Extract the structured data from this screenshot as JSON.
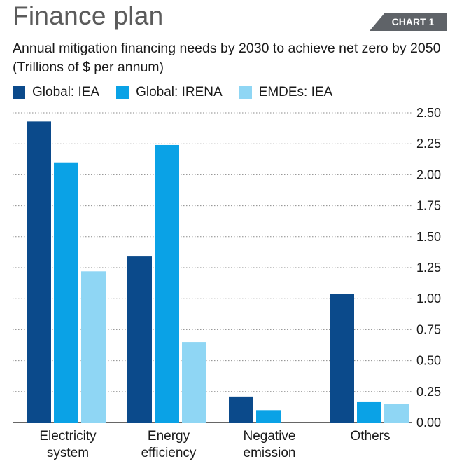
{
  "header": {
    "title": "Finance plan",
    "badge": "CHART 1"
  },
  "subtitle": {
    "line1": "Annual mitigation financing needs by 2030 to achieve net zero by 2050",
    "line2": "(Trillions of $ per annum)"
  },
  "colors": {
    "title": "#5b5b5b",
    "badge_bg": "#5f6368",
    "series": [
      "#0b4a8b",
      "#0aa2e6",
      "#8fd6f4"
    ],
    "grid": "#8a8a8a"
  },
  "chart_data": {
    "type": "bar",
    "categories": [
      [
        "Electricity",
        "system"
      ],
      [
        "Energy",
        "efficiency"
      ],
      [
        "Negative",
        "emission"
      ],
      [
        "Others"
      ]
    ],
    "series": [
      {
        "name": "Global: IEA",
        "values": [
          2.43,
          1.34,
          0.21,
          1.04
        ]
      },
      {
        "name": "Global: IRENA",
        "values": [
          2.1,
          2.24,
          0.1,
          0.17
        ]
      },
      {
        "name": "EMDEs: IEA",
        "values": [
          1.22,
          0.65,
          0.0,
          0.15
        ]
      }
    ],
    "ylim": [
      0,
      2.5
    ],
    "yticks": [
      "0.00",
      "0.25",
      "0.50",
      "0.75",
      "1.00",
      "1.25",
      "1.50",
      "1.75",
      "2.00",
      "2.25",
      "2.50"
    ],
    "ylabel": "",
    "xlabel": "",
    "grid": true,
    "y_axis_side": "right",
    "legend_position": "top-left"
  }
}
